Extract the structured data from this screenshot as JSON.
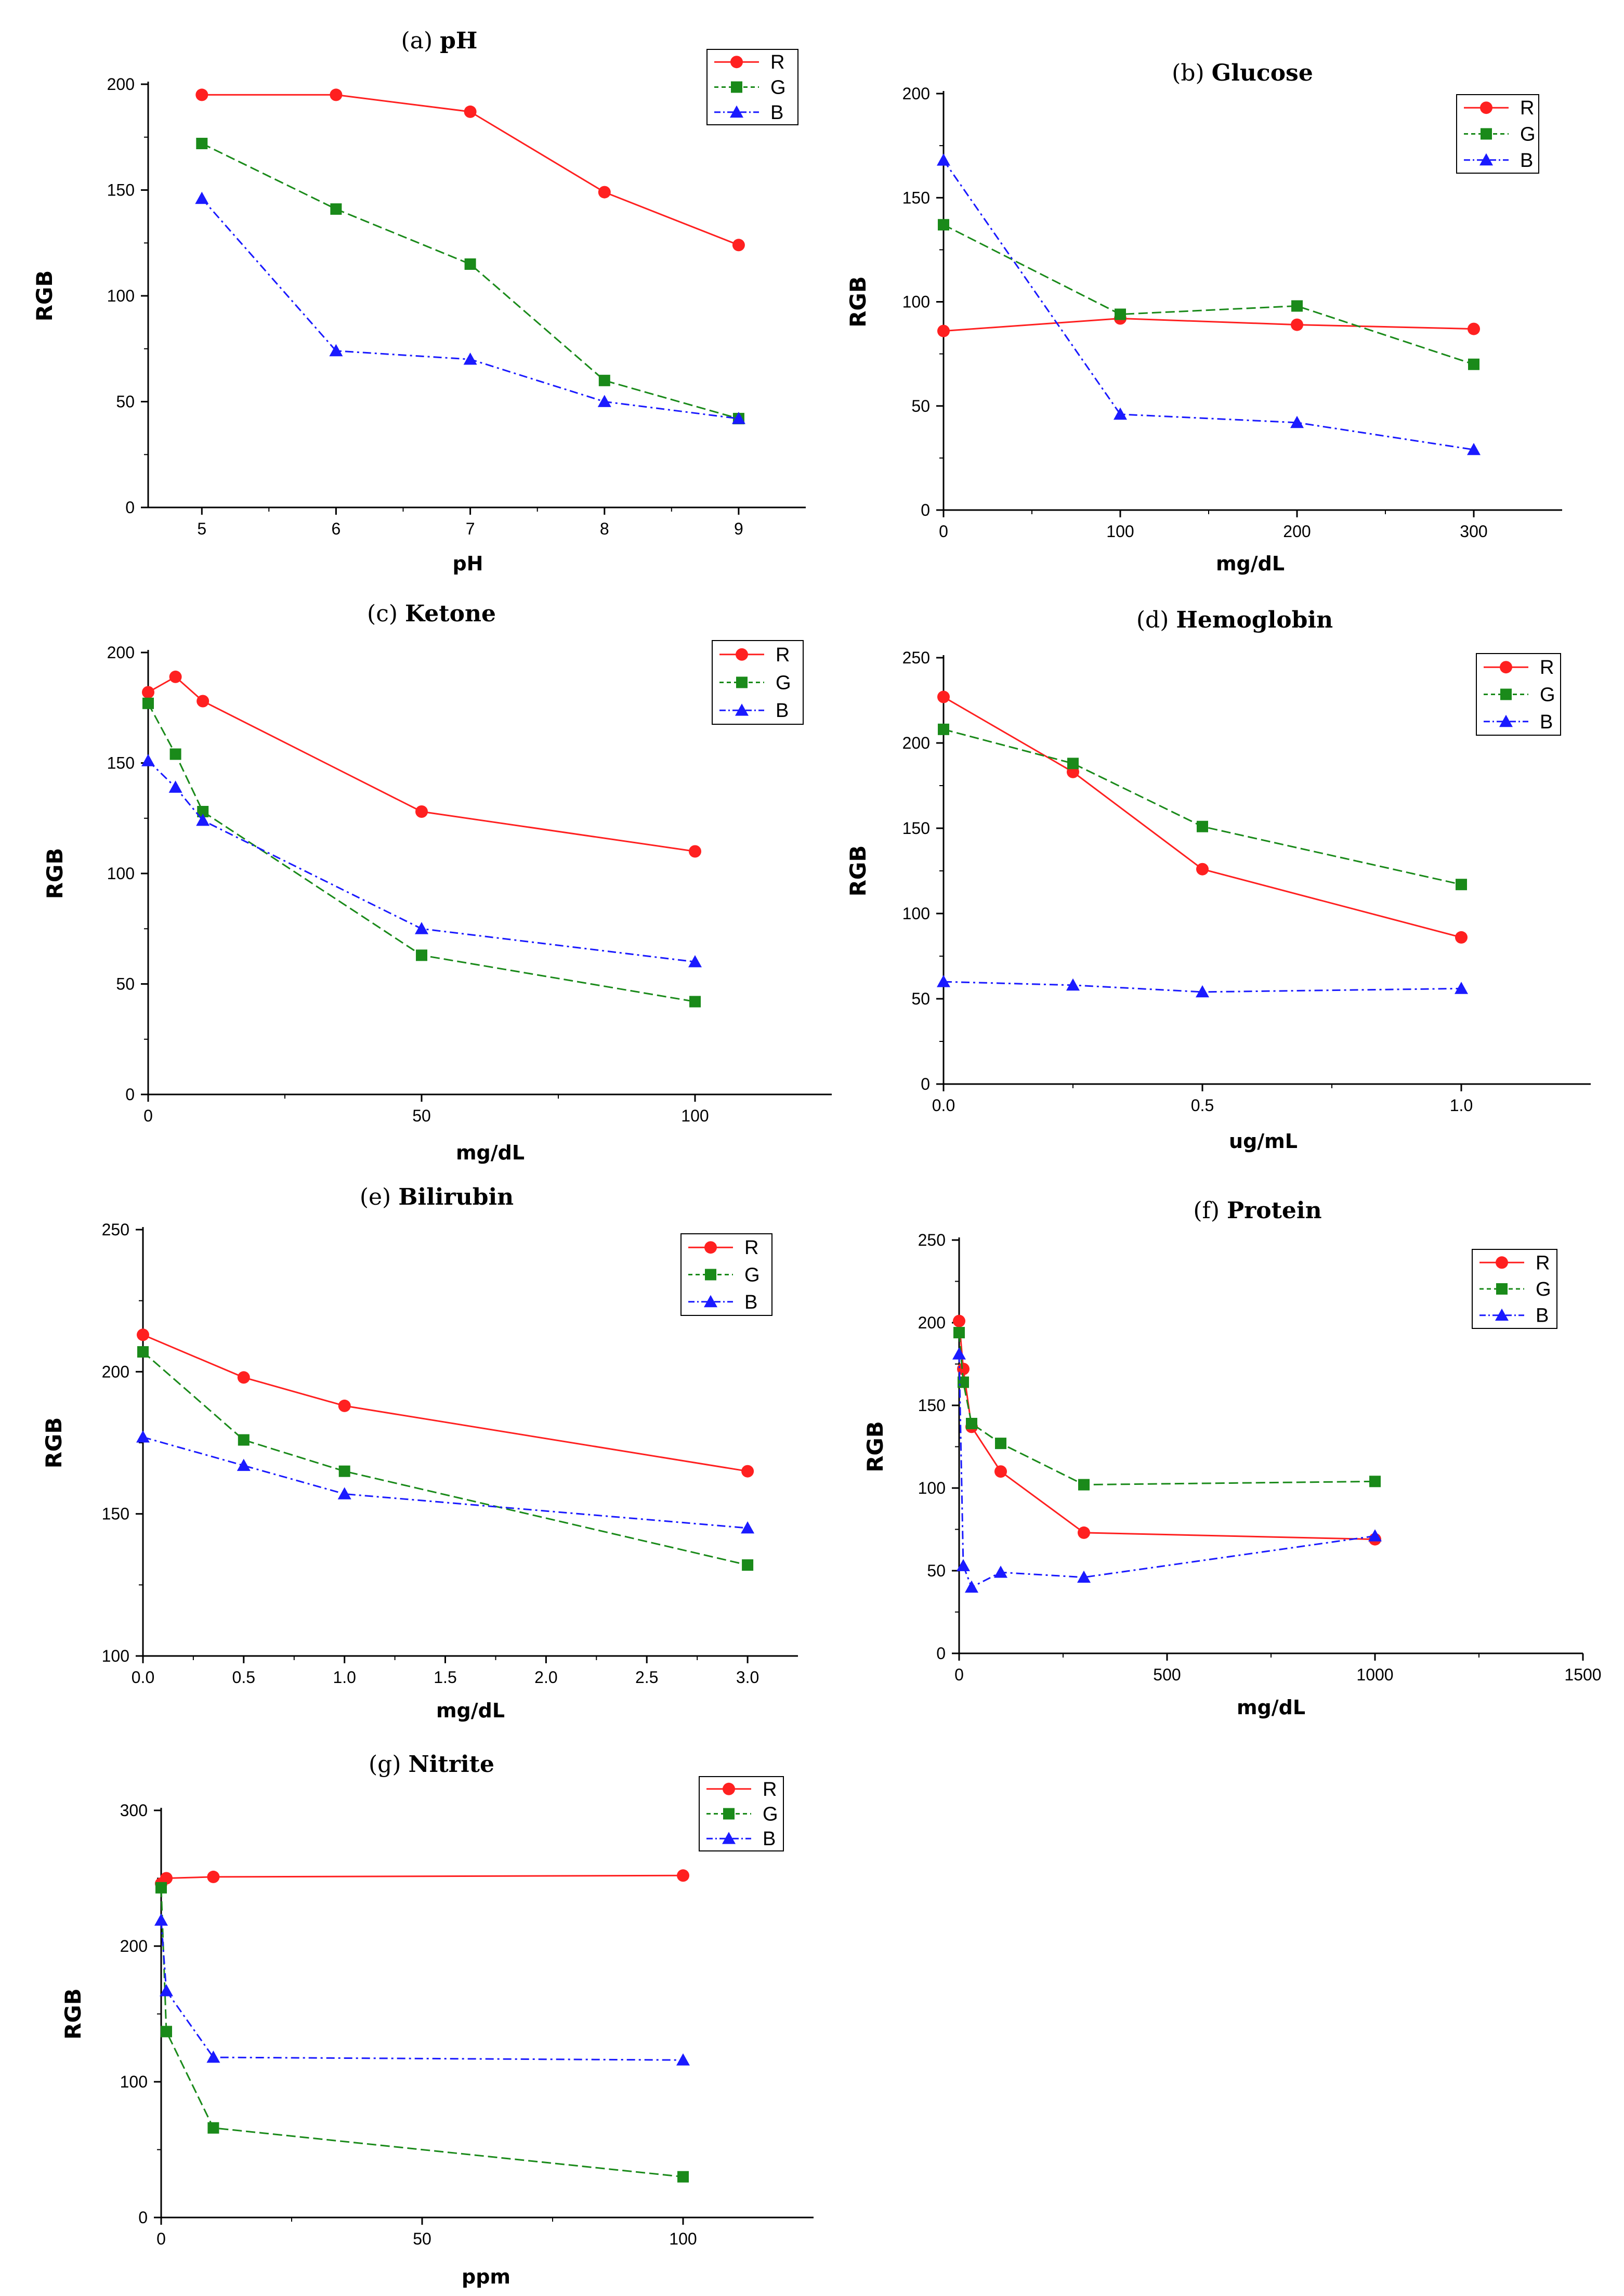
{
  "figure": {
    "series_colors": {
      "R": "#ff2020",
      "G": "#1a8a1a",
      "B": "#1a1aff"
    },
    "legend_entries": [
      "R",
      "G",
      "B"
    ]
  },
  "chart_data": [
    {
      "id": "a",
      "type": "line",
      "title": "pH",
      "title_prefix": "(a)",
      "xlabel": "pH",
      "ylabel": "RGB",
      "xlim": [
        4.6,
        9.5
      ],
      "ylim": [
        0,
        200
      ],
      "xticks": [
        5,
        6,
        7,
        8,
        9
      ],
      "xtick_labels": [
        "5",
        "6",
        "7",
        "8",
        "9"
      ],
      "yticks": [
        0,
        50,
        100,
        150,
        200
      ],
      "ytick_labels": [
        "0",
        "50",
        "100",
        "150",
        "200"
      ],
      "legend": "top-right",
      "series": [
        {
          "name": "R",
          "x": [
            5,
            6,
            7,
            8,
            9
          ],
          "values": [
            195,
            195,
            187,
            149,
            124
          ]
        },
        {
          "name": "G",
          "x": [
            5,
            6,
            7,
            8,
            9
          ],
          "values": [
            172,
            141,
            115,
            60,
            42
          ]
        },
        {
          "name": "B",
          "x": [
            5,
            6,
            7,
            8,
            9
          ],
          "values": [
            146,
            74,
            70,
            50,
            42
          ]
        }
      ]
    },
    {
      "id": "b",
      "type": "line",
      "title": "Glucose",
      "title_prefix": "(b)",
      "xlabel": "mg/dL",
      "ylabel": "RGB",
      "xlim": [
        0,
        350
      ],
      "ylim": [
        0,
        200
      ],
      "xticks": [
        0,
        100,
        200,
        300
      ],
      "xtick_labels": [
        "0",
        "100",
        "200",
        "300"
      ],
      "yticks": [
        0,
        50,
        100,
        150,
        200
      ],
      "ytick_labels": [
        "0",
        "50",
        "100",
        "150",
        "200"
      ],
      "legend": "top-right",
      "series": [
        {
          "name": "R",
          "x": [
            0,
            100,
            200,
            300
          ],
          "values": [
            86,
            92,
            89,
            87
          ]
        },
        {
          "name": "G",
          "x": [
            0,
            100,
            200,
            300
          ],
          "values": [
            137,
            94,
            98,
            70
          ]
        },
        {
          "name": "B",
          "x": [
            0,
            100,
            200,
            300
          ],
          "values": [
            168,
            46,
            42,
            29
          ]
        }
      ]
    },
    {
      "id": "c",
      "type": "line",
      "title": "Ketone",
      "title_prefix": "(c)",
      "xlabel": "mg/dL",
      "ylabel": "RGB",
      "xlim": [
        0,
        125
      ],
      "ylim": [
        0,
        200
      ],
      "xticks": [
        0,
        50,
        100
      ],
      "xtick_labels": [
        "0",
        "50",
        "100"
      ],
      "yticks": [
        0,
        50,
        100,
        150,
        200
      ],
      "ytick_labels": [
        "0",
        "50",
        "100",
        "150",
        "200"
      ],
      "legend": "top-right",
      "series": [
        {
          "name": "R",
          "x": [
            0,
            5,
            10,
            50,
            100
          ],
          "values": [
            182,
            189,
            178,
            128,
            110
          ]
        },
        {
          "name": "G",
          "x": [
            0,
            5,
            10,
            50,
            100
          ],
          "values": [
            177,
            154,
            128,
            63,
            42
          ]
        },
        {
          "name": "B",
          "x": [
            0,
            5,
            10,
            50,
            100
          ],
          "values": [
            151,
            139,
            124,
            75,
            60
          ]
        }
      ]
    },
    {
      "id": "d",
      "type": "line",
      "title": "Hemoglobin",
      "title_prefix": "(d)",
      "xlabel": "ug/mL",
      "ylabel": "RGB",
      "xlim": [
        0,
        1.25
      ],
      "ylim": [
        0,
        250
      ],
      "xticks": [
        0,
        0.5,
        1.0
      ],
      "xtick_labels": [
        "0.0",
        "0.5",
        "1.0"
      ],
      "yticks": [
        0,
        50,
        100,
        150,
        200,
        250
      ],
      "ytick_labels": [
        "0",
        "50",
        "100",
        "150",
        "200",
        "250"
      ],
      "legend": "top-right",
      "series": [
        {
          "name": "R",
          "x": [
            0,
            0.25,
            0.5,
            1.0
          ],
          "values": [
            227,
            183,
            126,
            86
          ]
        },
        {
          "name": "G",
          "x": [
            0,
            0.25,
            0.5,
            1.0
          ],
          "values": [
            208,
            188,
            151,
            117
          ]
        },
        {
          "name": "B",
          "x": [
            0,
            0.25,
            0.5,
            1.0
          ],
          "values": [
            60,
            58,
            54,
            56
          ]
        }
      ]
    },
    {
      "id": "e",
      "type": "line",
      "title": "Bilirubin",
      "title_prefix": "(e)",
      "xlabel": "mg/dL",
      "ylabel": "RGB",
      "xlim": [
        0,
        3.25
      ],
      "ylim": [
        100,
        250
      ],
      "xticks": [
        0,
        0.5,
        1.0,
        1.5,
        2.0,
        2.5,
        3.0
      ],
      "xtick_labels": [
        "0.0",
        "0.5",
        "1.0",
        "1.5",
        "2.0",
        "2.5",
        "3.0"
      ],
      "yticks": [
        100,
        150,
        200,
        250
      ],
      "ytick_labels": [
        "100",
        "150",
        "200",
        "250"
      ],
      "legend": "top-right",
      "series": [
        {
          "name": "R",
          "x": [
            0,
            0.5,
            1.0,
            3.0
          ],
          "values": [
            213,
            198,
            188,
            165
          ]
        },
        {
          "name": "G",
          "x": [
            0,
            0.5,
            1.0,
            3.0
          ],
          "values": [
            207,
            176,
            165,
            132
          ]
        },
        {
          "name": "B",
          "x": [
            0,
            0.5,
            1.0,
            3.0
          ],
          "values": [
            177,
            167,
            157,
            145
          ]
        }
      ]
    },
    {
      "id": "f",
      "type": "line",
      "title": "Protein",
      "title_prefix": "(f)",
      "xlabel": "mg/dL",
      "ylabel": "RGB",
      "xlim": [
        0,
        1500
      ],
      "ylim": [
        0,
        250
      ],
      "xticks": [
        0,
        500,
        1000,
        1500
      ],
      "xtick_labels": [
        "0",
        "500",
        "1000",
        "1500"
      ],
      "yticks": [
        0,
        50,
        100,
        150,
        200,
        250
      ],
      "ytick_labels": [
        "0",
        "50",
        "100",
        "150",
        "200",
        "250"
      ],
      "legend": "top-right",
      "series": [
        {
          "name": "R",
          "x": [
            0,
            10,
            30,
            100,
            300,
            1000
          ],
          "values": [
            201,
            172,
            137,
            110,
            73,
            69
          ]
        },
        {
          "name": "G",
          "x": [
            0,
            10,
            30,
            100,
            300,
            1000
          ],
          "values": [
            194,
            164,
            139,
            127,
            102,
            104
          ]
        },
        {
          "name": "B",
          "x": [
            0,
            10,
            30,
            100,
            300,
            1000
          ],
          "values": [
            181,
            53,
            40,
            49,
            46,
            71
          ]
        }
      ]
    },
    {
      "id": "g",
      "type": "line",
      "title": "Nitrite",
      "title_prefix": "(g)",
      "xlabel": "ppm",
      "ylabel": "RGB",
      "xlim": [
        0,
        125
      ],
      "ylim": [
        0,
        300
      ],
      "xticks": [
        0,
        50,
        100
      ],
      "xtick_labels": [
        "0",
        "50",
        "100"
      ],
      "yticks": [
        0,
        100,
        200,
        300
      ],
      "ytick_labels": [
        "0",
        "100",
        "200",
        "300"
      ],
      "legend": "top-right",
      "series": [
        {
          "name": "R",
          "x": [
            0,
            1,
            10,
            100
          ],
          "values": [
            246,
            250,
            251,
            252
          ]
        },
        {
          "name": "G",
          "x": [
            0,
            1,
            10,
            100
          ],
          "values": [
            243,
            137,
            66,
            30
          ]
        },
        {
          "name": "B",
          "x": [
            0,
            1,
            10,
            100
          ],
          "values": [
            219,
            167,
            118,
            116
          ]
        }
      ]
    }
  ]
}
